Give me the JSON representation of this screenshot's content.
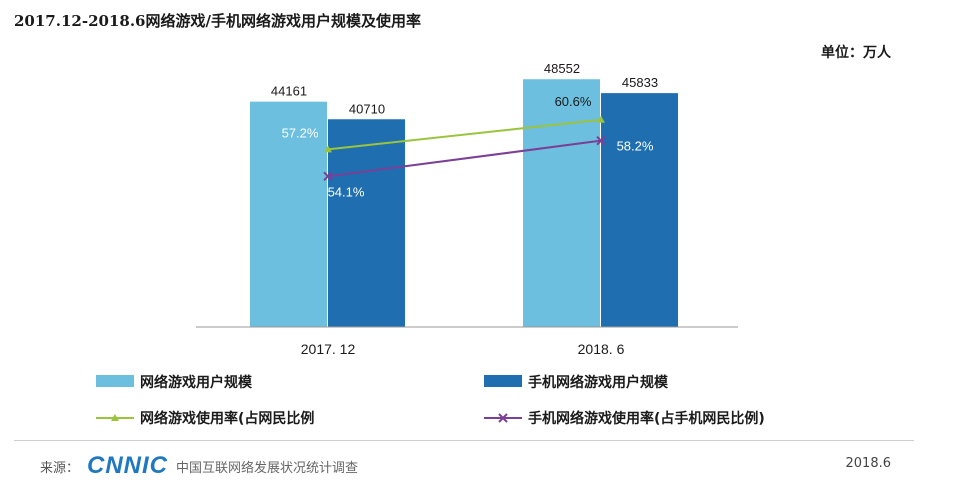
{
  "title": "2017.12-2018.6网络游戏/手机网络游戏用户规模及使用率",
  "unit": "单位：万人",
  "chart_data": {
    "type": "bar",
    "categories": [
      "2017. 12",
      "2018. 6"
    ],
    "series": [
      {
        "name": "网络游戏用户规模",
        "type": "bar",
        "color": "#6cbfdf",
        "values": [
          44161,
          48552
        ]
      },
      {
        "name": "手机网络游戏用户规模",
        "type": "bar",
        "color": "#1f6fb0",
        "values": [
          40710,
          45833
        ]
      },
      {
        "name": "网络游戏使用率(占网民比例",
        "type": "line",
        "color": "#9bc43c",
        "marker": "triangle",
        "values": [
          57.2,
          60.6
        ],
        "labels": [
          "57.2%",
          "60.6%"
        ]
      },
      {
        "name": "手机网络游戏使用率(占手机网民比例)",
        "type": "line",
        "color": "#7b3f96",
        "marker": "x",
        "values": [
          54.1,
          58.2
        ],
        "labels": [
          "54.1%",
          "58.2%"
        ]
      }
    ],
    "ylim": [
      0,
      50000
    ],
    "legend": "bottom",
    "grid": false
  },
  "footer": {
    "source_label": "来源：",
    "logo": "CNNIC",
    "org": "中国互联网络发展状况统计调查",
    "date": "2018.6"
  }
}
